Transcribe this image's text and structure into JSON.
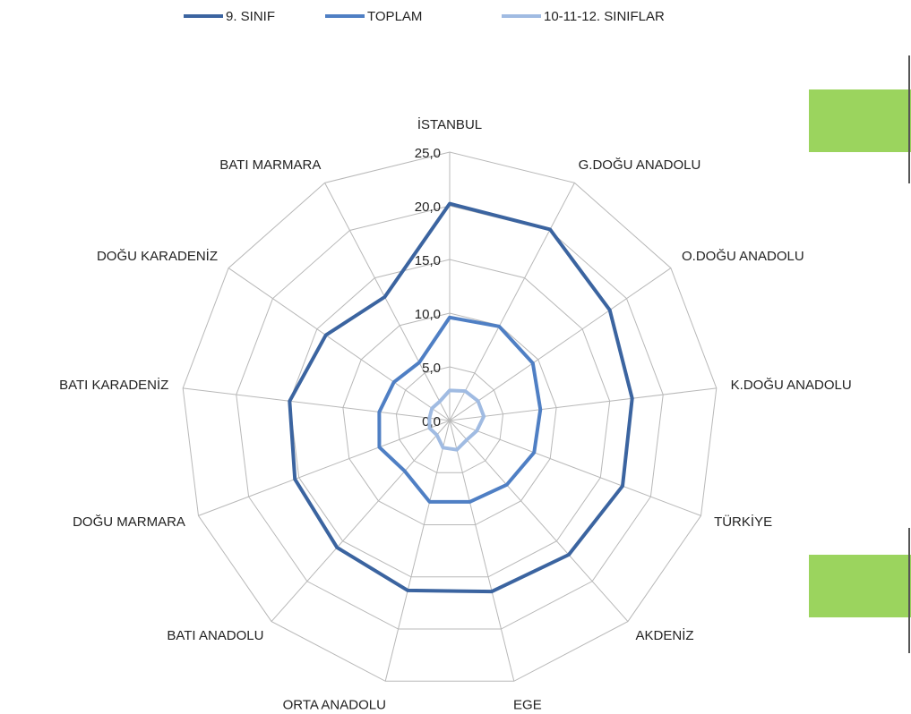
{
  "chart_data": {
    "type": "radar",
    "categories": [
      "İSTANBUL",
      "G.DOĞU ANADOLU",
      "O.DOĞU ANADOLU",
      "K.DOĞU ANADOLU",
      "TÜRKİYE",
      "AKDENİZ",
      "EGE",
      "ORTA ANADOLU",
      "BATI ANADOLU",
      "DOĞU MARMARA",
      "BATI KARADENİZ",
      "DOĞU KARADENİZ",
      "BATI MARMARA"
    ],
    "series": [
      {
        "name": "9. SINIF",
        "color": "#3b64a0",
        "values": [
          20.2,
          20.1,
          18.1,
          17.1,
          17.2,
          16.7,
          16.4,
          16.3,
          15.8,
          15.4,
          15.0,
          14.0,
          13.0
        ]
      },
      {
        "name": "TOPLAM",
        "color": "#4f7fc4",
        "values": [
          9.6,
          9.9,
          9.4,
          8.5,
          8.4,
          8.0,
          7.8,
          7.8,
          6.3,
          7.0,
          6.6,
          6.3,
          6.1
        ]
      },
      {
        "name": "10-11-12. SINIFLAR",
        "color": "#a0bbe2",
        "values": [
          2.8,
          3.1,
          3.2,
          3.2,
          2.7,
          2.4,
          2.8,
          2.6,
          1.8,
          2.0,
          1.9,
          2.0,
          2.0
        ]
      }
    ],
    "ylim": [
      0,
      25
    ],
    "yticks": [
      {
        "value": 0,
        "label": "0,0"
      },
      {
        "value": 5,
        "label": "5,0"
      },
      {
        "value": 10,
        "label": "10,0"
      },
      {
        "value": 15,
        "label": "15,0"
      },
      {
        "value": 20,
        "label": "20,0"
      },
      {
        "value": 25,
        "label": "25,0"
      }
    ],
    "grid": true,
    "legend": "top"
  }
}
